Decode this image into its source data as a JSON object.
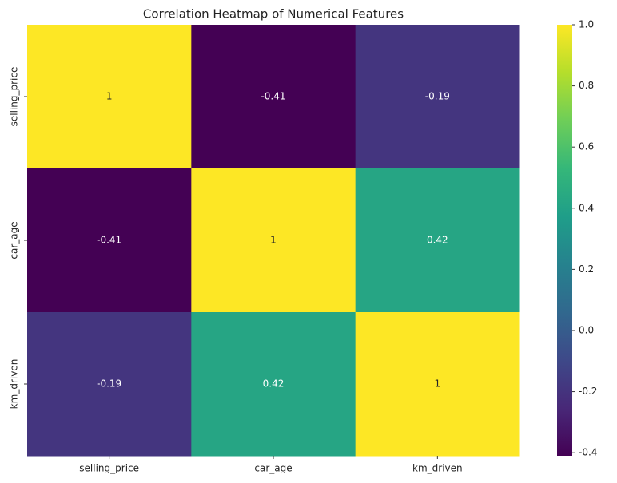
{
  "chart_data": {
    "type": "heatmap",
    "title": "Correlation Heatmap of Numerical Features",
    "x_categories": [
      "selling_price",
      "car_age",
      "km_driven"
    ],
    "y_categories": [
      "selling_price",
      "car_age",
      "km_driven"
    ],
    "values": [
      [
        1,
        -0.41,
        -0.19
      ],
      [
        -0.41,
        1,
        0.42
      ],
      [
        -0.19,
        0.42,
        1
      ]
    ],
    "colormap": "viridis",
    "colorscale": [
      "#440154",
      "#482878",
      "#3e4989",
      "#31688e",
      "#26828e",
      "#1f9e89",
      "#35b779",
      "#6ece58",
      "#b5de2b",
      "#fde725"
    ],
    "zlim": [
      -0.41,
      1
    ],
    "zticks": [
      -0.4,
      -0.2,
      {
        "value": 0,
        "label": "0.0"
      },
      0.2,
      0.4,
      0.6,
      0.8,
      {
        "value": 1,
        "label": "1.0"
      }
    ]
  }
}
